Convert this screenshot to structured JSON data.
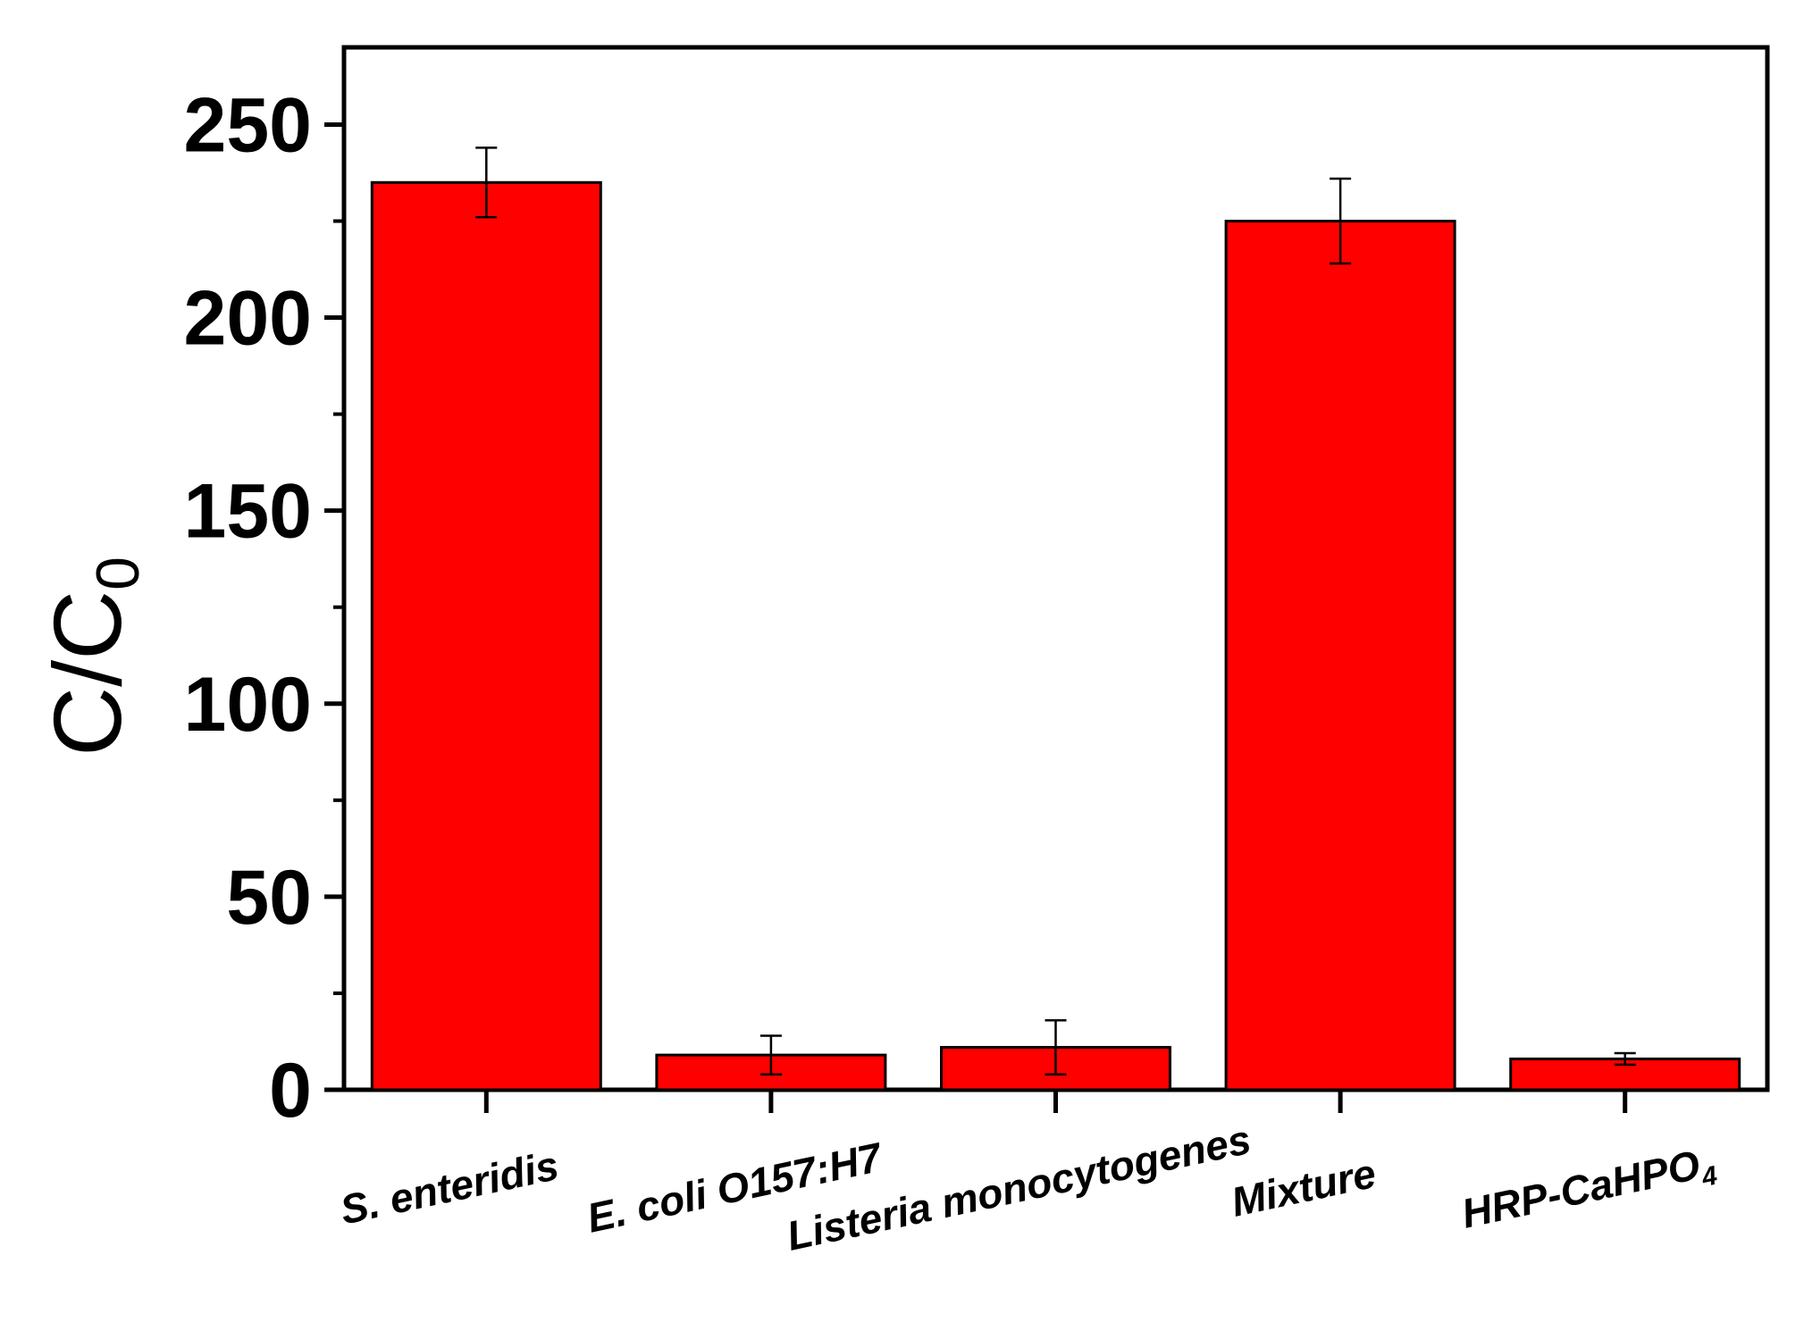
{
  "chart_data": {
    "type": "bar",
    "categories": [
      "S. enteridis",
      "E. coli O157:H7",
      "Listeria monocytogenes",
      "Mixture",
      "HRP-CaHPO"
    ],
    "category_subscripts": [
      "",
      "",
      "",
      "",
      "4"
    ],
    "category_italic": [
      true,
      false,
      false,
      false,
      false
    ],
    "values": [
      235,
      9,
      11,
      225,
      8
    ],
    "errors": [
      9,
      5,
      7,
      11,
      1.5
    ],
    "ylabel": "C/C",
    "ylabel_subscript": "0",
    "ylim": [
      0,
      270
    ],
    "yticks": [
      "0",
      "50",
      "100",
      "150",
      "200",
      "250"
    ],
    "bar_color": "#ff0000",
    "grid": false
  }
}
